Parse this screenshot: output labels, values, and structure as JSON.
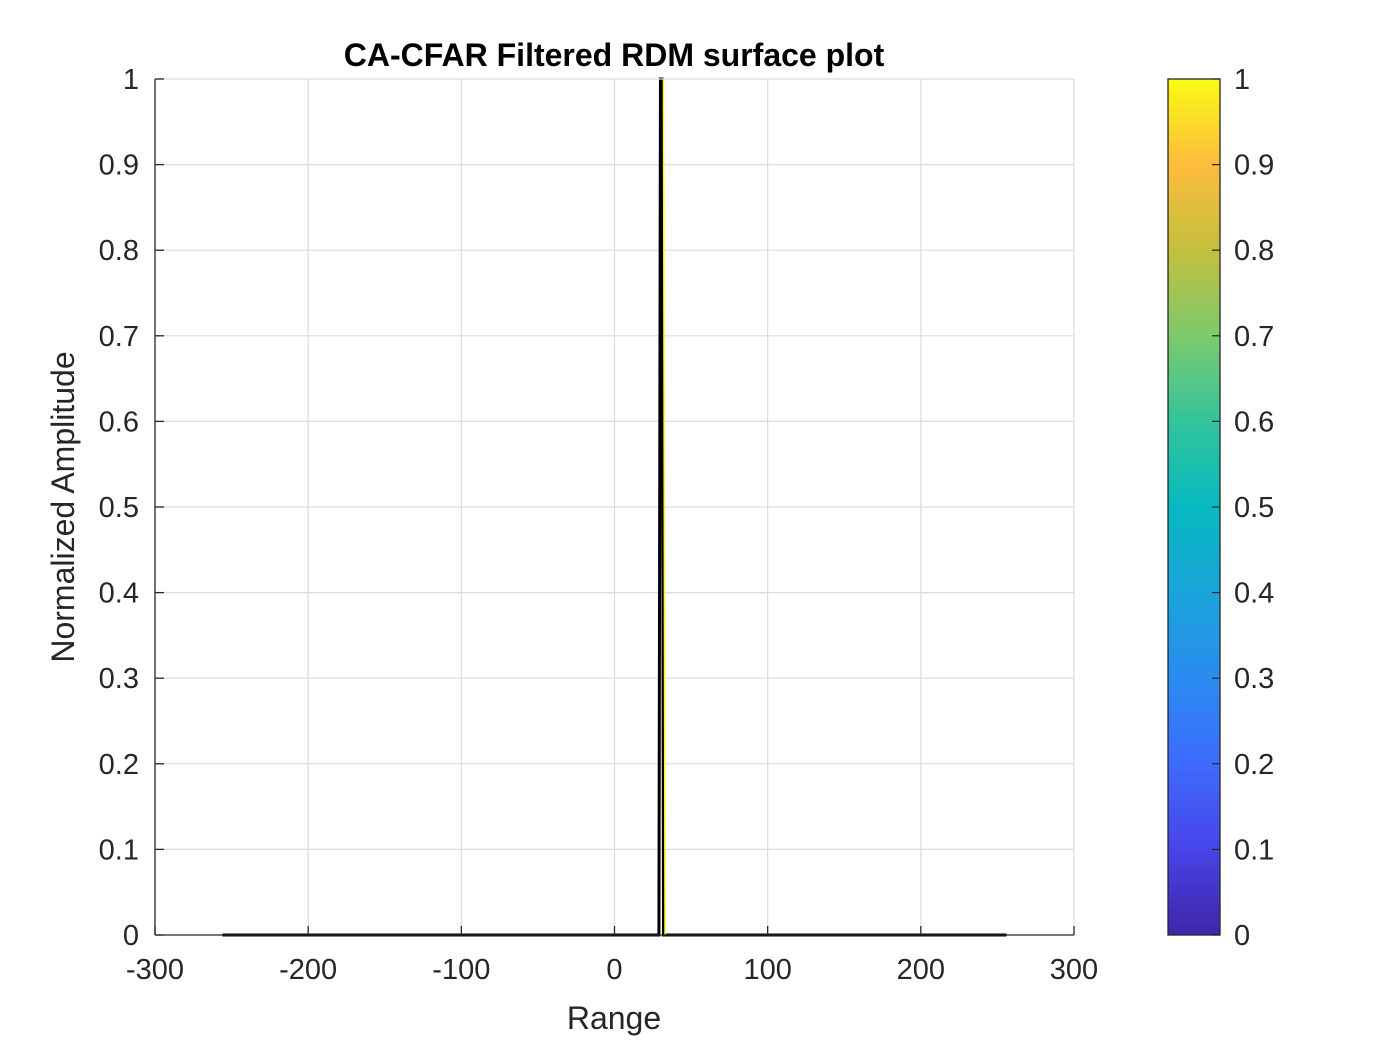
{
  "chart_data": {
    "type": "line",
    "title": "CA-CFAR Filtered RDM surface plot",
    "xlabel": "Range",
    "ylabel": "Normalized Amplitude",
    "xlim": [
      -300,
      300
    ],
    "ylim": [
      0,
      1
    ],
    "xticks": [
      -300,
      -200,
      -100,
      0,
      100,
      200,
      300
    ],
    "yticks": [
      0,
      0.1,
      0.2,
      0.3,
      0.4,
      0.5,
      0.6,
      0.7,
      0.8,
      0.9,
      1
    ],
    "grid": true,
    "series": [
      {
        "x": [
          -256,
          29,
          30,
          31,
          32,
          256
        ],
        "y": [
          0,
          0,
          1,
          1,
          0,
          0
        ],
        "color": "#000000"
      }
    ],
    "colorbar": {
      "range": [
        0,
        1
      ],
      "ticks": [
        0,
        0.1,
        0.2,
        0.3,
        0.4,
        0.5,
        0.6,
        0.7,
        0.8,
        0.9,
        1
      ],
      "colormap": [
        "#3e26a8",
        "#4744e8",
        "#3e6bfe",
        "#2a8bf0",
        "#1aa5da",
        "#06b9c0",
        "#33c49c",
        "#7dca6c",
        "#c4bf3e",
        "#fdbc3c",
        "#f9fb15"
      ]
    }
  }
}
